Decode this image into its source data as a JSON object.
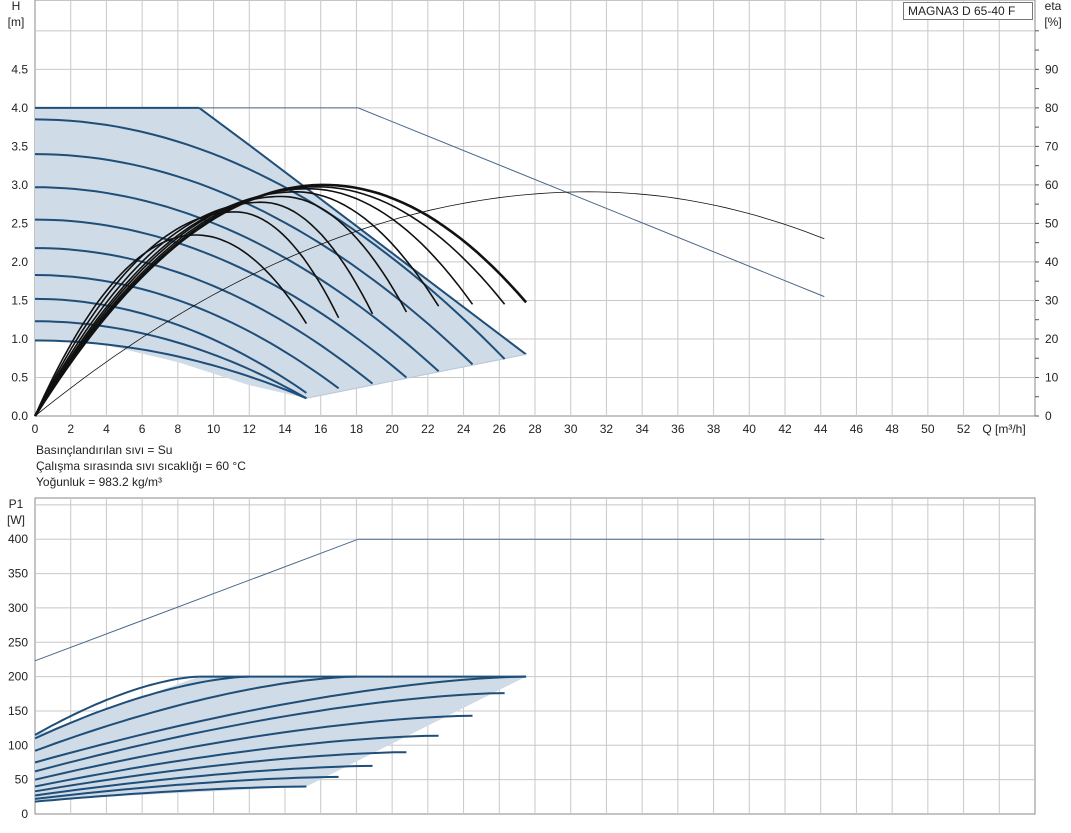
{
  "model_label": "MAGNA3 D 65-40 F",
  "fluid_info": [
    "Basınçlandırılan sıvı = Su",
    "Çalışma sırasında sıvı sıcaklığı = 60 °C",
    "Yoğunluk = 983.2 kg/m³"
  ],
  "colors": {
    "envelope_fill": "#cfdbe6",
    "pump_line": "#1f4e79",
    "eff_line": "#111111",
    "thin_line": "#4a6a8a",
    "grid": "#c8c8c8"
  },
  "chart_data": [
    {
      "type": "line",
      "title": "",
      "ylabel": "H",
      "yunit": "[m]",
      "y2label": "eta",
      "y2unit": "[%]",
      "xlabel": "Q [m³/h]",
      "xlim": [
        0,
        56
      ],
      "ylim": [
        0,
        5.4
      ],
      "y2lim": [
        0,
        108
      ],
      "grid": true,
      "x_ticks": [
        "0",
        "2",
        "4",
        "6",
        "8",
        "10",
        "12",
        "14",
        "16",
        "18",
        "20",
        "22",
        "24",
        "26",
        "28",
        "30",
        "32",
        "34",
        "36",
        "38",
        "40",
        "42",
        "44",
        "46",
        "48",
        "50",
        "52"
      ],
      "y_ticks": [
        "0.0",
        "0.5",
        "1.0",
        "1.5",
        "2.0",
        "2.5",
        "3.0",
        "3.5",
        "4.0",
        "4.5"
      ],
      "y2_ticks": [
        "0",
        "10",
        "20",
        "30",
        "40",
        "50",
        "60",
        "70",
        "80",
        "90"
      ],
      "envelope": [
        [
          0,
          4.0
        ],
        [
          9.2,
          4.0
        ],
        [
          12.1,
          3.5
        ],
        [
          27.5,
          0.8
        ],
        [
          15.2,
          0.23
        ],
        [
          12,
          0.4
        ],
        [
          8,
          0.7
        ],
        [
          4,
          0.92
        ],
        [
          0,
          1.0
        ]
      ],
      "speed_curves_H": [
        {
          "H0": 4.0,
          "Qmax": 27.5,
          "Hend": 0.8,
          "flat_to": 9.2
        },
        {
          "H0": 3.85,
          "Qmax": 26.3,
          "Hend": 0.74
        },
        {
          "H0": 3.4,
          "Qmax": 24.5,
          "Hend": 0.67
        },
        {
          "H0": 2.97,
          "Qmax": 22.6,
          "Hend": 0.58
        },
        {
          "H0": 2.55,
          "Qmax": 20.8,
          "Hend": 0.5
        },
        {
          "H0": 2.18,
          "Qmax": 18.9,
          "Hend": 0.42
        },
        {
          "H0": 1.83,
          "Qmax": 17.0,
          "Hend": 0.36
        },
        {
          "H0": 1.52,
          "Qmax": 15.2,
          "Hend": 0.3
        },
        {
          "H0": 1.23,
          "Qmax": 15.2,
          "Hend": 0.23
        },
        {
          "H0": 0.98,
          "Qmax": 15.2,
          "Hend": 0.23
        }
      ],
      "eta_curves": [
        {
          "peak": 60.0,
          "Qpeak": 16.2,
          "Qmax": 27.5,
          "end": 29.5
        },
        {
          "peak": 59.5,
          "Qpeak": 15.8,
          "Qmax": 26.3,
          "end": 29.0
        },
        {
          "peak": 59.0,
          "Qpeak": 15.3,
          "Qmax": 24.5,
          "end": 29.0
        },
        {
          "peak": 58.2,
          "Qpeak": 14.6,
          "Qmax": 22.6,
          "end": 28.5
        },
        {
          "peak": 57.0,
          "Qpeak": 13.8,
          "Qmax": 20.8,
          "end": 27.0
        },
        {
          "peak": 55.5,
          "Qpeak": 12.7,
          "Qmax": 18.9,
          "end": 26.5
        },
        {
          "peak": 53.0,
          "Qpeak": 11.2,
          "Qmax": 17.0,
          "end": 25.5
        },
        {
          "peak": 47.0,
          "Qpeak": 9.0,
          "Qmax": 15.2,
          "end": 24.0
        }
      ],
      "max_curve_H": [
        [
          0,
          4.0
        ],
        [
          18.1,
          4.0
        ],
        [
          44.2,
          1.55
        ]
      ],
      "max_eta_curve": {
        "peak": 58.2,
        "Qpeak": 31.0,
        "Qmax": 44.2,
        "end": 46.0
      }
    },
    {
      "type": "line",
      "title": "",
      "ylabel": "P1",
      "yunit": "[W]",
      "xlim": [
        0,
        56
      ],
      "ylim": [
        0,
        460
      ],
      "grid": true,
      "y_ticks": [
        "0",
        "50",
        "100",
        "150",
        "200",
        "250",
        "300",
        "350",
        "400"
      ],
      "envelope": [
        [
          0,
          115
        ],
        [
          9.2,
          200
        ],
        [
          27.5,
          200
        ],
        [
          15.2,
          40
        ],
        [
          0,
          20
        ]
      ],
      "power_curves": [
        {
          "start": 115,
          "Qend": 9.2,
          "end": 200
        },
        {
          "start": 110,
          "Qend": 12.0,
          "end": 200
        },
        {
          "start": 92,
          "Qend": 18.0,
          "end": 200
        },
        {
          "start": 75,
          "Qend": 27.5,
          "end": 200
        },
        {
          "start": 62,
          "Qend": 26.3,
          "end": 176
        },
        {
          "start": 50,
          "Qend": 24.5,
          "end": 143
        },
        {
          "start": 40,
          "Qend": 22.6,
          "end": 114
        },
        {
          "start": 33,
          "Qend": 20.8,
          "end": 90
        },
        {
          "start": 27,
          "Qend": 18.9,
          "end": 70
        },
        {
          "start": 22,
          "Qend": 17.0,
          "end": 54
        },
        {
          "start": 18,
          "Qend": 15.2,
          "end": 40
        }
      ],
      "max_curve_P": [
        [
          0,
          223
        ],
        [
          18.1,
          400
        ],
        [
          44.2,
          400
        ]
      ]
    }
  ]
}
